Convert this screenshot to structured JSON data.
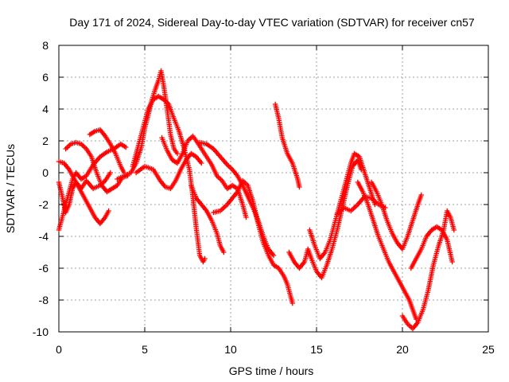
{
  "chart_data": {
    "type": "scatter",
    "title": "Day 171 of 2024, Sidereal Day-to-day VTEC variation (SDTVAR) for receiver cn57",
    "xlabel": "GPS time / hours",
    "ylabel": "SDTVAR / TECUs",
    "xlim": [
      0,
      25
    ],
    "ylim": [
      -10,
      8
    ],
    "xticks": [
      0,
      5,
      10,
      15,
      20,
      25
    ],
    "yticks": [
      -10,
      -8,
      -6,
      -4,
      -2,
      0,
      2,
      4,
      6,
      8
    ],
    "xtick_labels": [
      "0",
      "5",
      "10",
      "15",
      "20",
      "25"
    ],
    "ytick_labels": [
      "-10",
      "-8",
      "-6",
      "-4",
      "-2",
      "0",
      "2",
      "4",
      "6",
      "8"
    ],
    "grid": true,
    "marker": "plus",
    "color": "#ff0000",
    "series": [
      {
        "name": "track-1",
        "points": [
          [
            0,
            0.7
          ],
          [
            0.3,
            0.6
          ],
          [
            0.6,
            0.2
          ],
          [
            0.9,
            -0.4
          ],
          [
            1.2,
            -1.0
          ],
          [
            1.5,
            -1.6
          ],
          [
            1.8,
            -2.2
          ],
          [
            2.1,
            -2.8
          ],
          [
            2.4,
            -3.2
          ],
          [
            2.7,
            -2.8
          ],
          [
            2.9,
            -2.4
          ]
        ]
      },
      {
        "name": "track-2",
        "points": [
          [
            0,
            -3.6
          ],
          [
            0.2,
            -2.8
          ],
          [
            0.4,
            -2.0
          ],
          [
            0.6,
            -1.2
          ],
          [
            0.8,
            -0.4
          ],
          [
            1.0,
            0.0
          ],
          [
            1.3,
            -0.4
          ],
          [
            1.6,
            -0.2
          ],
          [
            2.0,
            0.5
          ],
          [
            2.4,
            1.0
          ],
          [
            2.8,
            1.3
          ],
          [
            3.2,
            1.5
          ],
          [
            3.6,
            1.8
          ],
          [
            3.9,
            1.6
          ]
        ]
      },
      {
        "name": "track-3",
        "points": [
          [
            0,
            -0.6
          ],
          [
            0.2,
            -1.5
          ],
          [
            0.4,
            -2.5
          ],
          [
            0.6,
            -2.0
          ],
          [
            0.8,
            -1.0
          ],
          [
            1.0,
            -0.6
          ],
          [
            1.3,
            -1.0
          ],
          [
            1.6,
            -0.5
          ],
          [
            2.0,
            -1.0
          ],
          [
            2.4,
            -0.8
          ],
          [
            2.7,
            -0.5
          ],
          [
            3.0,
            0.0
          ]
        ]
      },
      {
        "name": "track-4",
        "points": [
          [
            0.4,
            1.5
          ],
          [
            0.7,
            1.8
          ],
          [
            1.0,
            1.9
          ],
          [
            1.3,
            1.8
          ],
          [
            1.6,
            1.5
          ],
          [
            1.9,
            1.0
          ],
          [
            2.2,
            0.0
          ],
          [
            2.5,
            -0.8
          ],
          [
            2.8,
            -1.2
          ],
          [
            3.1,
            -1.0
          ],
          [
            3.4,
            -0.8
          ],
          [
            3.7,
            -0.3
          ],
          [
            4.0,
            -0.2
          ]
        ]
      },
      {
        "name": "track-5",
        "points": [
          [
            1.8,
            2.4
          ],
          [
            2.1,
            2.6
          ],
          [
            2.4,
            2.7
          ],
          [
            2.7,
            2.3
          ],
          [
            3.0,
            1.8
          ],
          [
            3.3,
            1.2
          ],
          [
            3.6,
            0.4
          ],
          [
            3.8,
            0.0
          ]
        ]
      },
      {
        "name": "track-6",
        "points": [
          [
            3.4,
            -0.4
          ],
          [
            3.8,
            -0.2
          ],
          [
            4.2,
            0.0
          ],
          [
            4.5,
            0.6
          ],
          [
            4.8,
            1.6
          ],
          [
            5.0,
            2.8
          ],
          [
            5.2,
            3.6
          ],
          [
            5.4,
            4.5
          ],
          [
            5.6,
            5.2
          ],
          [
            5.8,
            5.8
          ],
          [
            5.95,
            6.4
          ],
          [
            6.1,
            5.5
          ],
          [
            6.3,
            4.0
          ],
          [
            6.5,
            2.4
          ],
          [
            6.7,
            1.5
          ],
          [
            6.9,
            1.2
          ]
        ]
      },
      {
        "name": "track-7",
        "points": [
          [
            4.3,
            0.4
          ],
          [
            4.6,
            1.6
          ],
          [
            4.9,
            2.8
          ],
          [
            5.2,
            4.0
          ],
          [
            5.5,
            4.6
          ],
          [
            5.8,
            4.8
          ],
          [
            6.1,
            4.6
          ],
          [
            6.4,
            4.3
          ],
          [
            6.7,
            3.4
          ],
          [
            7.0,
            2.6
          ],
          [
            7.3,
            1.5
          ],
          [
            7.6,
            0.2
          ],
          [
            7.8,
            -1.5
          ],
          [
            8.0,
            -3.5
          ],
          [
            8.2,
            -5.2
          ],
          [
            8.4,
            -5.6
          ],
          [
            8.5,
            -5.4
          ]
        ]
      },
      {
        "name": "track-8",
        "points": [
          [
            4.5,
            0.0
          ],
          [
            5.0,
            0.4
          ],
          [
            5.5,
            0.2
          ],
          [
            5.9,
            -0.5
          ],
          [
            6.2,
            -0.9
          ],
          [
            6.5,
            -1.0
          ],
          [
            6.8,
            -0.5
          ],
          [
            7.1,
            0.2
          ],
          [
            7.4,
            0.8
          ],
          [
            7.7,
            1.2
          ],
          [
            8.0,
            1.0
          ],
          [
            8.3,
            0.6
          ]
        ]
      },
      {
        "name": "track-9",
        "points": [
          [
            6.0,
            2.2
          ],
          [
            6.3,
            1.4
          ],
          [
            6.6,
            0.8
          ],
          [
            6.9,
            0.6
          ],
          [
            7.2,
            1.2
          ],
          [
            7.5,
            2.0
          ],
          [
            7.8,
            2.3
          ],
          [
            8.0,
            2.0
          ],
          [
            8.3,
            1.5
          ],
          [
            8.6,
            1.0
          ],
          [
            8.9,
            0.5
          ],
          [
            9.2,
            -0.2
          ],
          [
            9.5,
            -0.5
          ],
          [
            9.8,
            -1.0
          ],
          [
            10.1,
            -0.8
          ],
          [
            10.4,
            -1.0
          ],
          [
            10.7,
            -2.0
          ],
          [
            10.9,
            -2.8
          ]
        ]
      },
      {
        "name": "track-10",
        "points": [
          [
            8.2,
            1.9
          ],
          [
            8.6,
            1.8
          ],
          [
            9.0,
            1.5
          ],
          [
            9.4,
            1.0
          ],
          [
            9.8,
            0.5
          ],
          [
            10.1,
            0.2
          ],
          [
            10.4,
            -0.2
          ],
          [
            10.7,
            -0.8
          ],
          [
            11.0,
            -1.5
          ],
          [
            11.3,
            -2.2
          ],
          [
            11.6,
            -3.0
          ],
          [
            11.9,
            -4.0
          ],
          [
            12.2,
            -4.8
          ],
          [
            12.5,
            -5.2
          ]
        ]
      },
      {
        "name": "track-11",
        "points": [
          [
            7.7,
            -0.8
          ],
          [
            8.0,
            -1.6
          ],
          [
            8.3,
            -2.0
          ],
          [
            8.6,
            -2.4
          ],
          [
            8.9,
            -3.0
          ],
          [
            9.2,
            -3.8
          ],
          [
            9.4,
            -4.6
          ],
          [
            9.6,
            -5.0
          ]
        ]
      },
      {
        "name": "track-12",
        "points": [
          [
            9.0,
            -2.5
          ],
          [
            9.4,
            -2.4
          ],
          [
            9.8,
            -2.0
          ],
          [
            10.1,
            -1.6
          ],
          [
            10.4,
            -1.2
          ],
          [
            10.7,
            -0.5
          ],
          [
            11.0,
            -0.8
          ],
          [
            11.3,
            -1.8
          ],
          [
            11.6,
            -3.2
          ],
          [
            11.9,
            -4.4
          ],
          [
            12.2,
            -5.2
          ],
          [
            12.5,
            -5.8
          ],
          [
            12.8,
            -6.0
          ],
          [
            13.1,
            -6.5
          ],
          [
            13.3,
            -7.0
          ],
          [
            13.5,
            -7.8
          ],
          [
            13.6,
            -8.2
          ]
        ]
      },
      {
        "name": "track-13",
        "points": [
          [
            12.6,
            4.3
          ],
          [
            12.8,
            3.4
          ],
          [
            13.0,
            2.2
          ],
          [
            13.3,
            1.2
          ],
          [
            13.6,
            0.6
          ],
          [
            13.9,
            -0.4
          ],
          [
            14.0,
            -0.9
          ]
        ]
      },
      {
        "name": "track-14",
        "points": [
          [
            13.4,
            -5.0
          ],
          [
            13.7,
            -5.6
          ],
          [
            14.0,
            -6.0
          ],
          [
            14.3,
            -5.6
          ],
          [
            14.5,
            -4.8
          ],
          [
            14.7,
            -5.4
          ],
          [
            15.0,
            -6.2
          ],
          [
            15.3,
            -6.6
          ],
          [
            15.6,
            -5.8
          ],
          [
            15.9,
            -4.8
          ],
          [
            16.2,
            -3.6
          ],
          [
            16.5,
            -2.2
          ],
          [
            16.8,
            -0.8
          ],
          [
            17.1,
            0.4
          ],
          [
            17.4,
            0.8
          ],
          [
            17.6,
            0.2
          ]
        ]
      },
      {
        "name": "track-15",
        "points": [
          [
            14.6,
            -3.6
          ],
          [
            14.9,
            -4.6
          ],
          [
            15.2,
            -5.4
          ],
          [
            15.5,
            -5.0
          ],
          [
            15.8,
            -4.2
          ],
          [
            16.1,
            -3.0
          ],
          [
            16.4,
            -1.8
          ],
          [
            16.7,
            -0.6
          ],
          [
            17.0,
            0.6
          ],
          [
            17.2,
            1.2
          ],
          [
            17.5,
            1.0
          ],
          [
            17.8,
            0.0
          ],
          [
            18.1,
            -1.0
          ],
          [
            18.4,
            -2.0
          ]
        ]
      },
      {
        "name": "track-16",
        "points": [
          [
            16.2,
            -2.6
          ],
          [
            16.6,
            -2.2
          ],
          [
            17.0,
            -2.4
          ],
          [
            17.4,
            -2.0
          ],
          [
            17.8,
            -1.5
          ],
          [
            18.2,
            -1.6
          ],
          [
            18.6,
            -2.0
          ],
          [
            19.0,
            -2.2
          ]
        ]
      },
      {
        "name": "track-17",
        "points": [
          [
            17.4,
            -0.6
          ],
          [
            17.7,
            -1.2
          ],
          [
            18.0,
            -2.0
          ],
          [
            18.3,
            -3.0
          ],
          [
            18.6,
            -4.0
          ],
          [
            18.9,
            -4.8
          ],
          [
            19.2,
            -5.6
          ],
          [
            19.5,
            -6.2
          ],
          [
            19.8,
            -6.8
          ],
          [
            20.1,
            -7.4
          ],
          [
            20.4,
            -8.0
          ],
          [
            20.6,
            -8.6
          ],
          [
            20.8,
            -9.2
          ]
        ]
      },
      {
        "name": "track-18",
        "points": [
          [
            18.2,
            -0.6
          ],
          [
            18.5,
            -1.2
          ],
          [
            18.8,
            -2.0
          ],
          [
            19.1,
            -3.0
          ],
          [
            19.4,
            -3.8
          ],
          [
            19.7,
            -4.4
          ],
          [
            20.0,
            -4.8
          ],
          [
            20.3,
            -4.0
          ],
          [
            20.6,
            -3.0
          ],
          [
            20.9,
            -2.0
          ],
          [
            21.1,
            -1.4
          ]
        ]
      },
      {
        "name": "track-19",
        "points": [
          [
            20.0,
            -9.0
          ],
          [
            20.3,
            -9.5
          ],
          [
            20.6,
            -9.8
          ],
          [
            20.9,
            -9.4
          ],
          [
            21.2,
            -8.6
          ],
          [
            21.5,
            -7.4
          ],
          [
            21.8,
            -5.8
          ],
          [
            22.1,
            -4.6
          ],
          [
            22.4,
            -3.6
          ],
          [
            22.6,
            -2.4
          ],
          [
            22.8,
            -2.8
          ],
          [
            23.0,
            -3.6
          ]
        ]
      },
      {
        "name": "track-20",
        "points": [
          [
            20.5,
            -6.0
          ],
          [
            20.8,
            -5.4
          ],
          [
            21.1,
            -4.8
          ],
          [
            21.4,
            -4.0
          ],
          [
            21.7,
            -3.6
          ],
          [
            22.0,
            -3.4
          ],
          [
            22.3,
            -3.6
          ],
          [
            22.6,
            -4.2
          ],
          [
            22.9,
            -5.6
          ]
        ]
      }
    ]
  }
}
